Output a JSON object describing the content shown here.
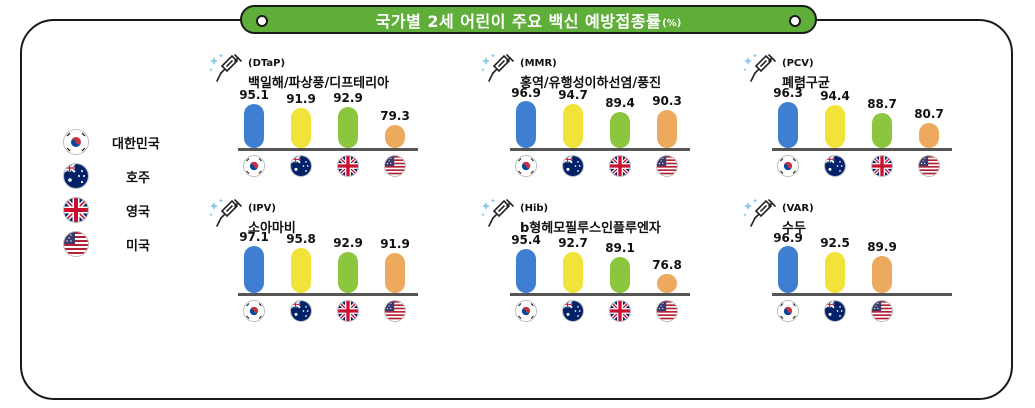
{
  "title": {
    "main": "국가별 2세 어린이 주요 백신 예방접종률",
    "unit": "(%)"
  },
  "colors": {
    "korea": "#3f7fd1",
    "australia": "#f2e33a",
    "uk": "#8cc63f",
    "usa": "#eda95e",
    "title_bg": "#5fae3a"
  },
  "legend": [
    {
      "label": "대한민국",
      "flag": "korea-flag-icon"
    },
    {
      "label": "호주",
      "flag": "australia-flag-icon"
    },
    {
      "label": "영국",
      "flag": "uk-flag-icon"
    },
    {
      "label": "미국",
      "flag": "usa-flag-icon"
    }
  ],
  "chart_data": [
    {
      "type": "bar",
      "abbr": "(DTaP)",
      "title": "백일해/파상풍/디프테리아",
      "categories": [
        "대한민국",
        "호주",
        "영국",
        "미국"
      ],
      "values": [
        95.1,
        91.9,
        92.9,
        79.3
      ]
    },
    {
      "type": "bar",
      "abbr": "(MMR)",
      "title": "홍역/유행성이하선염/풍진",
      "categories": [
        "대한민국",
        "호주",
        "영국",
        "미국"
      ],
      "values": [
        96.9,
        94.7,
        89.4,
        90.3
      ]
    },
    {
      "type": "bar",
      "abbr": "(PCV)",
      "title": "폐렴구균",
      "categories": [
        "대한민국",
        "호주",
        "영국",
        "미국"
      ],
      "values": [
        96.3,
        94.4,
        88.7,
        80.7
      ]
    },
    {
      "type": "bar",
      "abbr": "(IPV)",
      "title": "소아마비",
      "categories": [
        "대한민국",
        "호주",
        "영국",
        "미국"
      ],
      "values": [
        97.1,
        95.8,
        92.9,
        91.9
      ]
    },
    {
      "type": "bar",
      "abbr": "(Hib)",
      "title": "b형헤모필루스인플루엔자",
      "categories": [
        "대한민국",
        "호주",
        "영국",
        "미국"
      ],
      "values": [
        95.4,
        92.7,
        89.1,
        76.8
      ]
    },
    {
      "type": "bar",
      "abbr": "(VAR)",
      "title": "수두",
      "categories": [
        "대한민국",
        "호주",
        "미국"
      ],
      "values": [
        96.9,
        92.5,
        89.9
      ]
    }
  ]
}
